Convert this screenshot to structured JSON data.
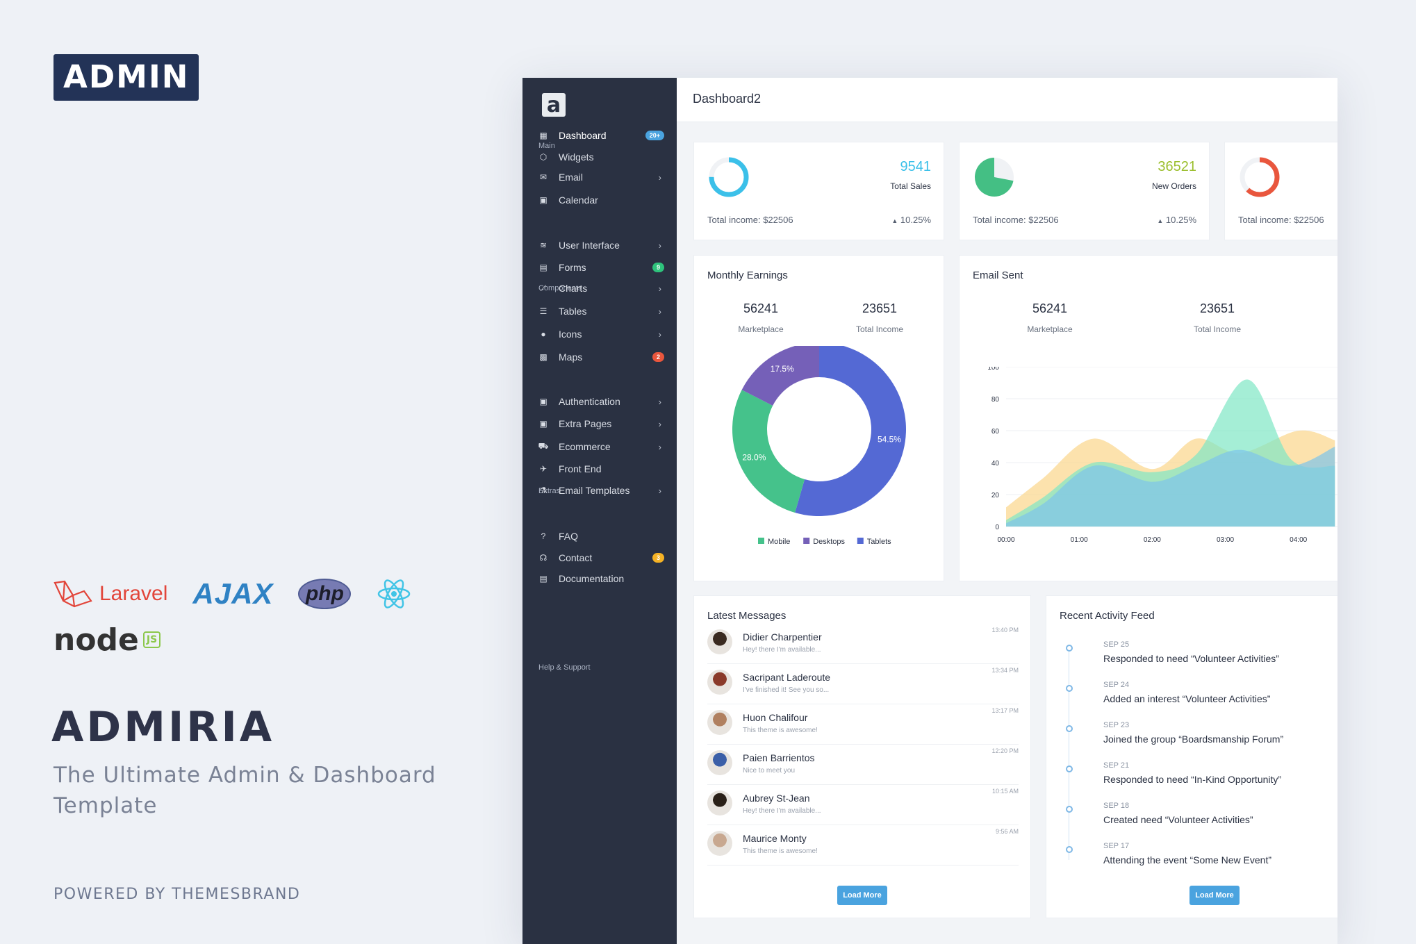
{
  "promo": {
    "badge": "ADMIN",
    "laravel": "Laravel",
    "ajax": "AJAX",
    "php": "php",
    "node": "node",
    "node_js": "JS",
    "name": "ADMIRIA",
    "tagline": "The Ultimate Admin & Dashboard Template",
    "powered": "POWERED BY THEMESBRAND"
  },
  "sidebar": {
    "logo": "a",
    "sections": {
      "main": "Main",
      "components": "Components",
      "extras": "Extras",
      "help": "Help & Support"
    },
    "items": [
      {
        "label": "Dashboard",
        "icon": "dashboard-icon",
        "badge": "20+",
        "badge_color": "#4aa3df"
      },
      {
        "label": "Widgets",
        "icon": "cube-icon"
      },
      {
        "label": "Email",
        "icon": "mail-icon",
        "arrow": true
      },
      {
        "label": "Calendar",
        "icon": "calendar-icon"
      },
      {
        "label": "User Interface",
        "icon": "layers-icon",
        "arrow": true
      },
      {
        "label": "Forms",
        "icon": "clipboard-icon",
        "badge": "9",
        "badge_color": "#2ec37c"
      },
      {
        "label": "Charts",
        "icon": "chart-icon",
        "arrow": true
      },
      {
        "label": "Tables",
        "icon": "list-icon",
        "arrow": true
      },
      {
        "label": "Icons",
        "icon": "circle-icon",
        "arrow": true
      },
      {
        "label": "Maps",
        "icon": "map-icon",
        "badge": "2",
        "badge_color": "#e9563d"
      },
      {
        "label": "Authentication",
        "icon": "user-icon",
        "arrow": true
      },
      {
        "label": "Extra Pages",
        "icon": "pages-icon",
        "arrow": true
      },
      {
        "label": "Ecommerce",
        "icon": "cart-icon",
        "arrow": true
      },
      {
        "label": "Front End",
        "icon": "plane-icon"
      },
      {
        "label": "Email Templates",
        "icon": "flask-icon",
        "arrow": true
      },
      {
        "label": "FAQ",
        "icon": "help-icon"
      },
      {
        "label": "Contact",
        "icon": "headphones-icon",
        "badge": "3",
        "badge_color": "#f5b225"
      },
      {
        "label": "Documentation",
        "icon": "doc-icon"
      }
    ]
  },
  "topbar": {
    "title": "Dashboard2"
  },
  "stats": [
    {
      "value": "9541",
      "label": "Total Sales",
      "income": "Total income: $22506",
      "pct": "10.25%",
      "color": "#3bc0e9",
      "fill": 0.75
    },
    {
      "value": "36521",
      "label": "New Orders",
      "income": "Total income: $22506",
      "pct": "10.25%",
      "color": "#44bf84",
      "fill": 0.72
    },
    {
      "value": "",
      "label": "",
      "income": "Total income: $22506",
      "pct": "",
      "color": "#e9563d",
      "fill": 0.62
    }
  ],
  "monthly": {
    "title": "Monthly Earnings",
    "kpi1_value": "56241",
    "kpi1_label": "Marketplace",
    "kpi2_value": "23651",
    "kpi2_label": "Total Income"
  },
  "email": {
    "title": "Email Sent",
    "kpi1_value": "56241",
    "kpi1_label": "Marketplace",
    "kpi2_value": "23651",
    "kpi2_label": "Total Income"
  },
  "chart_data": [
    {
      "type": "pie",
      "categories": [
        "Mobile",
        "Desktops",
        "Tablets"
      ],
      "values": [
        28.0,
        17.5,
        54.5
      ],
      "labels": [
        "28.0%",
        "17.5%",
        "54.5%"
      ],
      "colors": [
        "#45c28b",
        "#7560b8",
        "#5469d4"
      ],
      "legend": "bottom"
    },
    {
      "type": "area",
      "x": [
        "00:00",
        "01:00",
        "02:00",
        "03:00",
        "04:00"
      ],
      "ylim": [
        0,
        100
      ],
      "yticks": [
        0,
        20,
        40,
        60,
        80,
        100
      ],
      "grid": true,
      "series": [
        {
          "color": "#fbd58a",
          "points": [
            [
              0.0,
              12
            ],
            [
              0.5,
              30
            ],
            [
              1.2,
              55
            ],
            [
              2.0,
              36
            ],
            [
              2.6,
              55
            ],
            [
              3.2,
              46
            ],
            [
              4.0,
              60
            ],
            [
              4.5,
              54
            ]
          ]
        },
        {
          "color": "#7fe7c4",
          "points": [
            [
              0.0,
              4
            ],
            [
              0.5,
              18
            ],
            [
              1.2,
              40
            ],
            [
              2.0,
              34
            ],
            [
              2.6,
              45
            ],
            [
              3.3,
              92
            ],
            [
              3.9,
              42
            ],
            [
              4.5,
              38
            ]
          ]
        },
        {
          "color": "#7ec4ea",
          "points": [
            [
              0.0,
              2
            ],
            [
              0.5,
              14
            ],
            [
              1.2,
              38
            ],
            [
              2.0,
              28
            ],
            [
              2.6,
              38
            ],
            [
              3.2,
              48
            ],
            [
              3.9,
              38
            ],
            [
              4.5,
              50
            ]
          ]
        }
      ]
    }
  ],
  "messages": {
    "title": "Latest Messages",
    "button": "Load More",
    "items": [
      {
        "name": "Didier Charpentier",
        "text": "Hey! there I'm available...",
        "time": "13:40 PM",
        "color": "#3a2a20"
      },
      {
        "name": "Sacripant Laderoute",
        "text": "I've finished it! See you so...",
        "time": "13:34 PM",
        "color": "#8a3a2a"
      },
      {
        "name": "Huon Chalifour",
        "text": "This theme is awesome!",
        "time": "13:17 PM",
        "color": "#b08060"
      },
      {
        "name": "Paien Barrientos",
        "text": "Nice to meet you",
        "time": "12:20 PM",
        "color": "#3b5fa8"
      },
      {
        "name": "Aubrey St-Jean",
        "text": "Hey! there I'm available...",
        "time": "10:15 AM",
        "color": "#2a2018"
      },
      {
        "name": "Maurice Monty",
        "text": "This theme is awesome!",
        "time": "9:56 AM",
        "color": "#c8a890"
      }
    ]
  },
  "activity": {
    "title": "Recent Activity Feed",
    "button": "Load More",
    "items": [
      {
        "date": "SEP 25",
        "text": "Responded to need “Volunteer Activities”"
      },
      {
        "date": "SEP 24",
        "text": "Added an interest “Volunteer Activities”"
      },
      {
        "date": "SEP 23",
        "text": "Joined the group “Boardsmanship Forum”"
      },
      {
        "date": "SEP 21",
        "text": "Responded to need “In-Kind Opportunity”"
      },
      {
        "date": "SEP 18",
        "text": "Created need “Volunteer Activities”"
      },
      {
        "date": "SEP 17",
        "text": "Attending the event “Some New Event”"
      }
    ]
  }
}
